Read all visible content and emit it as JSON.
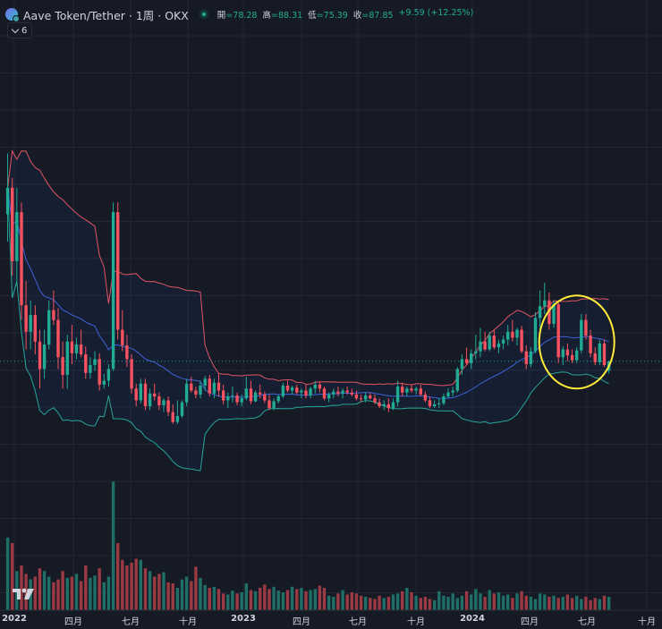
{
  "header": {
    "title": "Aave Token/Tether · 1周 · OKX",
    "ohlc": [
      {
        "label": "開",
        "value": "=78.28"
      },
      {
        "label": "高",
        "value": "=88.31"
      },
      {
        "label": "低",
        "value": "=75.39"
      },
      {
        "label": "收",
        "value": "=87.85"
      }
    ],
    "change": "+9.59 (+12.25%)",
    "indicator_count": "6"
  },
  "icons": {
    "logo": "aave-token-logo-icon",
    "status": "market-status-dot-icon",
    "collapse": "chevron-down-icon",
    "brand": "tradingview-logo-icon"
  },
  "colors": {
    "up": "#22ab94",
    "down": "#f7525f",
    "vol_up": "#1f6f67",
    "vol_down": "#9c3a44",
    "upper_band": "#e05565",
    "mid_band": "#3d63d8",
    "lower_band": "#26a69a",
    "annotation": "#ffeb3b"
  },
  "xaxis": {
    "labels": [
      "2022",
      "四月",
      "七月",
      "十月",
      "2023",
      "四月",
      "七月",
      "十月",
      "2024",
      "四月",
      "七月",
      "十月"
    ]
  },
  "chart_data": {
    "type": "candlestick",
    "indicators": [
      "Bollinger Bands",
      "Volume"
    ],
    "annotation": "yellow ellipse around recent candles (Apr–Jul 2024)",
    "ohlc": [
      [
        238,
        300,
        210,
        265
      ],
      [
        265,
        275,
        175,
        190
      ],
      [
        190,
        265,
        165,
        240
      ],
      [
        240,
        250,
        130,
        145
      ],
      [
        145,
        170,
        100,
        118
      ],
      [
        118,
        150,
        100,
        135
      ],
      [
        135,
        145,
        95,
        108
      ],
      [
        108,
        120,
        60,
        80
      ],
      [
        80,
        120,
        70,
        105
      ],
      [
        105,
        150,
        100,
        140
      ],
      [
        140,
        160,
        125,
        130
      ],
      [
        130,
        142,
        80,
        92
      ],
      [
        92,
        108,
        60,
        74
      ],
      [
        74,
        115,
        60,
        108
      ],
      [
        108,
        125,
        85,
        96
      ],
      [
        96,
        112,
        90,
        105
      ],
      [
        105,
        120,
        92,
        95
      ],
      [
        95,
        103,
        70,
        76
      ],
      [
        76,
        92,
        70,
        84
      ],
      [
        84,
        98,
        78,
        90
      ],
      [
        90,
        96,
        58,
        64
      ],
      [
        64,
        75,
        60,
        68
      ],
      [
        68,
        85,
        62,
        80
      ],
      [
        80,
        250,
        78,
        240
      ],
      [
        240,
        250,
        110,
        120
      ],
      [
        120,
        140,
        98,
        104
      ],
      [
        104,
        115,
        82,
        90
      ],
      [
        90,
        95,
        55,
        60
      ],
      [
        60,
        65,
        42,
        48
      ],
      [
        48,
        70,
        45,
        65
      ],
      [
        65,
        70,
        38,
        42
      ],
      [
        42,
        60,
        38,
        55
      ],
      [
        55,
        65,
        48,
        52
      ],
      [
        52,
        56,
        38,
        43
      ],
      [
        43,
        50,
        36,
        48
      ],
      [
        48,
        52,
        32,
        36
      ],
      [
        36,
        44,
        24,
        26
      ],
      [
        26,
        48,
        24,
        32
      ],
      [
        32,
        48,
        30,
        46
      ],
      [
        46,
        70,
        42,
        65
      ],
      [
        65,
        72,
        56,
        58
      ],
      [
        58,
        62,
        50,
        54
      ],
      [
        54,
        68,
        50,
        63
      ],
      [
        63,
        73,
        58,
        70
      ],
      [
        70,
        74,
        52,
        55
      ],
      [
        55,
        70,
        50,
        66
      ],
      [
        66,
        75,
        52,
        58
      ],
      [
        58,
        64,
        44,
        48
      ],
      [
        48,
        56,
        40,
        52
      ],
      [
        52,
        62,
        46,
        53
      ],
      [
        53,
        56,
        43,
        46
      ],
      [
        46,
        54,
        42,
        50
      ],
      [
        50,
        72,
        48,
        60
      ],
      [
        60,
        68,
        44,
        47
      ],
      [
        47,
        58,
        46,
        56
      ],
      [
        56,
        64,
        50,
        54
      ],
      [
        54,
        57,
        45,
        48
      ],
      [
        48,
        54,
        38,
        40
      ],
      [
        40,
        50,
        38,
        47
      ],
      [
        47,
        54,
        45,
        52
      ],
      [
        52,
        66,
        50,
        63
      ],
      [
        63,
        68,
        56,
        58
      ],
      [
        58,
        63,
        54,
        61
      ],
      [
        61,
        64,
        54,
        56
      ],
      [
        56,
        60,
        50,
        58
      ],
      [
        58,
        64,
        50,
        53
      ],
      [
        53,
        62,
        50,
        60
      ],
      [
        60,
        68,
        55,
        64
      ],
      [
        64,
        67,
        56,
        60
      ],
      [
        60,
        62,
        48,
        50
      ],
      [
        50,
        56,
        46,
        54
      ],
      [
        54,
        60,
        50,
        57
      ],
      [
        57,
        62,
        52,
        55
      ],
      [
        55,
        60,
        50,
        58
      ],
      [
        58,
        62,
        54,
        56
      ],
      [
        56,
        60,
        52,
        54
      ],
      [
        54,
        58,
        48,
        50
      ],
      [
        50,
        54,
        46,
        49
      ],
      [
        49,
        56,
        46,
        53
      ],
      [
        53,
        56,
        49,
        50
      ],
      [
        50,
        54,
        44,
        46
      ],
      [
        46,
        50,
        40,
        42
      ],
      [
        42,
        48,
        38,
        44
      ],
      [
        44,
        50,
        36,
        40
      ],
      [
        40,
        50,
        38,
        46
      ],
      [
        46,
        68,
        42,
        62
      ],
      [
        62,
        66,
        52,
        56
      ],
      [
        56,
        62,
        52,
        60
      ],
      [
        60,
        64,
        56,
        58
      ],
      [
        58,
        62,
        54,
        60
      ],
      [
        60,
        64,
        52,
        54
      ],
      [
        54,
        57,
        46,
        48
      ],
      [
        48,
        52,
        40,
        42
      ],
      [
        42,
        48,
        40,
        44
      ],
      [
        44,
        50,
        40,
        45
      ],
      [
        45,
        55,
        43,
        52
      ],
      [
        52,
        60,
        50,
        56
      ],
      [
        56,
        62,
        52,
        58
      ],
      [
        58,
        82,
        56,
        80
      ],
      [
        80,
        95,
        74,
        90
      ],
      [
        90,
        102,
        84,
        86
      ],
      [
        86,
        100,
        80,
        96
      ],
      [
        96,
        115,
        90,
        98
      ],
      [
        98,
        122,
        92,
        108
      ],
      [
        108,
        118,
        98,
        100
      ],
      [
        100,
        118,
        98,
        114
      ],
      [
        114,
        120,
        100,
        102
      ],
      [
        102,
        110,
        96,
        106
      ],
      [
        106,
        114,
        100,
        110
      ],
      [
        110,
        125,
        104,
        118
      ],
      [
        118,
        130,
        108,
        112
      ],
      [
        112,
        122,
        104,
        120
      ],
      [
        120,
        124,
        96,
        98
      ],
      [
        98,
        104,
        80,
        85
      ],
      [
        85,
        102,
        82,
        98
      ],
      [
        98,
        138,
        96,
        132
      ],
      [
        132,
        160,
        120,
        144
      ],
      [
        144,
        168,
        136,
        150
      ],
      [
        150,
        158,
        120,
        126
      ],
      [
        126,
        150,
        122,
        146
      ],
      [
        146,
        150,
        86,
        92
      ],
      [
        92,
        103,
        84,
        100
      ],
      [
        100,
        106,
        88,
        94
      ],
      [
        94,
        100,
        86,
        89
      ],
      [
        89,
        102,
        86,
        99
      ],
      [
        99,
        136,
        96,
        130
      ],
      [
        130,
        136,
        110,
        114
      ],
      [
        114,
        120,
        92,
        96
      ],
      [
        96,
        102,
        84,
        87
      ],
      [
        87,
        110,
        84,
        106
      ],
      [
        106,
        110,
        82,
        84
      ],
      [
        78.28,
        88.31,
        75.39,
        87.85
      ]
    ],
    "volume": [
      130,
      120,
      70,
      80,
      65,
      55,
      60,
      75,
      70,
      60,
      50,
      55,
      70,
      58,
      60,
      65,
      52,
      80,
      58,
      62,
      75,
      50,
      60,
      230,
      120,
      90,
      80,
      85,
      92,
      90,
      75,
      70,
      60,
      65,
      68,
      50,
      48,
      40,
      55,
      60,
      52,
      78,
      58,
      45,
      40,
      42,
      38,
      30,
      28,
      35,
      30,
      32,
      48,
      36,
      34,
      40,
      46,
      38,
      42,
      35,
      32,
      36,
      42,
      38,
      40,
      34,
      36,
      38,
      44,
      40,
      26,
      24,
      30,
      36,
      28,
      32,
      30,
      26,
      24,
      22,
      20,
      26,
      22,
      24,
      28,
      30,
      34,
      40,
      32,
      26,
      22,
      24,
      20,
      18,
      34,
      26,
      24,
      30,
      22,
      26,
      34,
      28,
      38,
      30,
      24,
      36,
      30,
      32,
      26,
      28,
      22,
      30,
      34,
      26,
      24,
      20,
      30,
      28,
      24,
      26,
      22,
      24,
      28,
      22,
      26,
      20,
      24,
      18,
      22,
      20,
      26,
      24
    ],
    "xlabels": [
      "2022",
      "四月",
      "七月",
      "十月",
      "2023",
      "四月",
      "七月",
      "十月",
      "2024",
      "四月",
      "七月",
      "十月"
    ],
    "bollinger_period": 20,
    "bollinger_mult": 2
  }
}
